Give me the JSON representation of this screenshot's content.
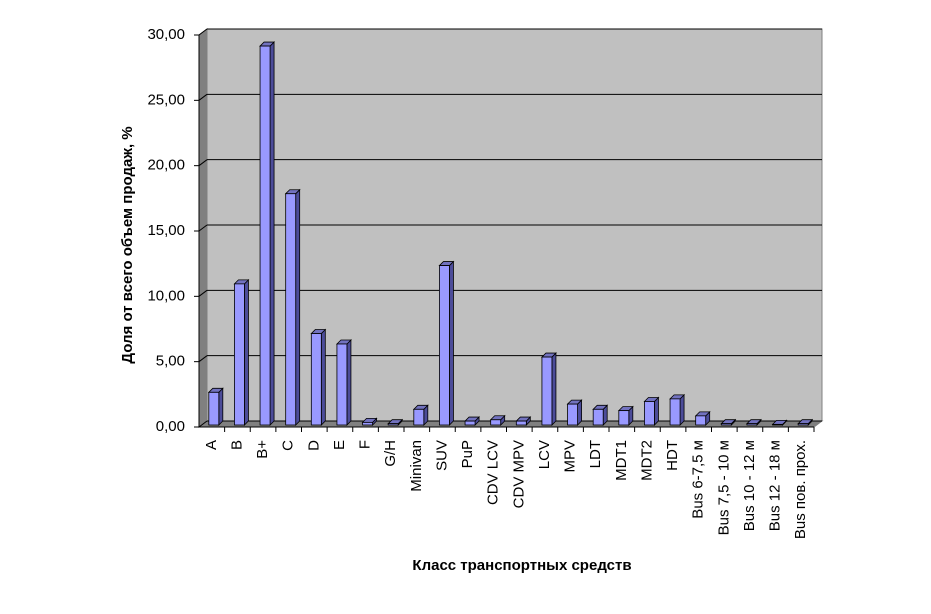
{
  "chart_data": {
    "type": "bar",
    "color": "#9999ff",
    "grid": true,
    "y_label": "Доля от всего объем продаж, %",
    "x_label": "Класс транспортных средств",
    "categories": [
      "A",
      "B",
      "B+",
      "C",
      "D",
      "E",
      "F",
      "G/H",
      "Minivan",
      "SUV",
      "PuP",
      "CDV LCV",
      "CDV MPV",
      "LCV",
      "MPV",
      "LDT",
      "MDT1",
      "MDT2",
      "HDT",
      "Bus 6-7,5 м",
      "Bus 7,5 - 10 м",
      "Bus 10 - 12 м",
      "Bus 12 - 18 м",
      "Bus пов. прох."
    ],
    "values": [
      2.5,
      10.8,
      29.0,
      17.7,
      7.0,
      6.2,
      0.2,
      0.1,
      1.2,
      12.2,
      0.3,
      0.4,
      0.3,
      5.2,
      1.6,
      1.2,
      1.1,
      1.8,
      2.0,
      0.7,
      0.1,
      0.1,
      0.05,
      0.1
    ],
    "ylim": [
      0,
      30
    ],
    "yticks": [
      {
        "value": 0,
        "label": "0,00"
      },
      {
        "value": 5,
        "label": "5,00"
      },
      {
        "value": 10,
        "label": "10,00"
      },
      {
        "value": 15,
        "label": "15,00"
      },
      {
        "value": 20,
        "label": "20,00"
      },
      {
        "value": 25,
        "label": "25,00"
      },
      {
        "value": 30,
        "label": "30,00"
      }
    ]
  }
}
